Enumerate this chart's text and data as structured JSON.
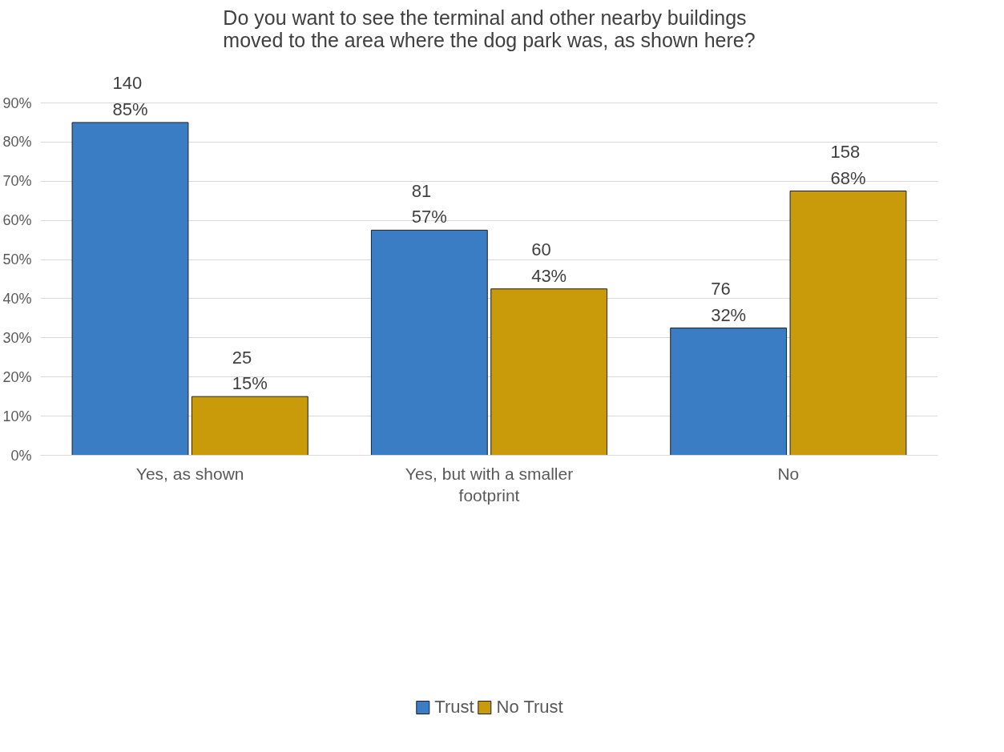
{
  "chart_data": {
    "type": "bar",
    "title": "Do you want to see the terminal and other nearby buildings moved to the area where the dog park was, as shown here?",
    "categories": [
      "Yes, as shown",
      "Yes, but with a smaller footprint",
      "No"
    ],
    "series": [
      {
        "name": "Trust",
        "color": "#3a7dc5",
        "values": [
          85,
          57.5,
          32.5
        ],
        "value_labels": [
          "140\n85%",
          "81\n57%",
          "76\n32%"
        ]
      },
      {
        "name": "No Trust",
        "color": "#c99a0a",
        "values": [
          15,
          42.5,
          67.5
        ],
        "value_labels": [
          "25\n15%",
          "60\n43%",
          "158\n68%"
        ]
      }
    ],
    "ylim": [
      0,
      90
    ],
    "yticks": [
      {
        "value": 0,
        "label": "0%"
      },
      {
        "value": 10,
        "label": "10%"
      },
      {
        "value": 20,
        "label": "20%"
      },
      {
        "value": 30,
        "label": "30%"
      },
      {
        "value": 40,
        "label": "40%"
      },
      {
        "value": 50,
        "label": "50%"
      },
      {
        "value": 60,
        "label": "60%"
      },
      {
        "value": 70,
        "label": "70%"
      },
      {
        "value": 80,
        "label": "80%"
      },
      {
        "value": 90,
        "label": "90%"
      }
    ],
    "grid": "y",
    "legend": "bottom"
  }
}
